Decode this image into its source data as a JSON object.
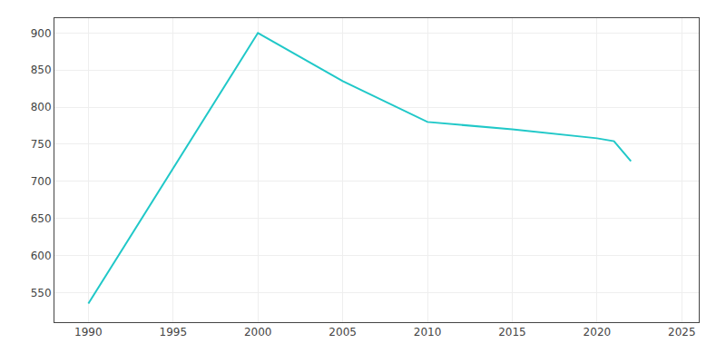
{
  "chart_data": {
    "type": "line",
    "x": [
      1990,
      2000,
      2005,
      2010,
      2015,
      2020,
      2021,
      2022
    ],
    "values": [
      535,
      900,
      835,
      780,
      770,
      758,
      754,
      727
    ],
    "color": "#20c8c8",
    "xlim": [
      1988,
      2026
    ],
    "ylim": [
      510,
      920
    ],
    "xticks": [
      1990,
      1995,
      2000,
      2005,
      2010,
      2015,
      2020,
      2025
    ],
    "yticks": [
      550,
      600,
      650,
      700,
      750,
      800,
      850,
      900
    ],
    "grid": true
  }
}
